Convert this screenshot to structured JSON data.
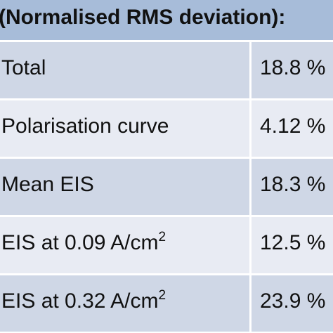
{
  "header": {
    "title": "(Normalised RMS deviation):"
  },
  "table": {
    "rows": [
      [
        {
          "text": "Total"
        },
        "18.8 %"
      ],
      [
        {
          "text": "Polarisation curve"
        },
        "4.12 %"
      ],
      [
        {
          "text": "Mean EIS"
        },
        "18.3 %"
      ],
      [
        {
          "text": "EIS at 0.09 A/cm",
          "sup": "2"
        },
        "12.5 %"
      ],
      [
        {
          "text": "EIS at 0.32 A/cm",
          "sup": "2"
        },
        "23.9 %"
      ]
    ]
  }
}
